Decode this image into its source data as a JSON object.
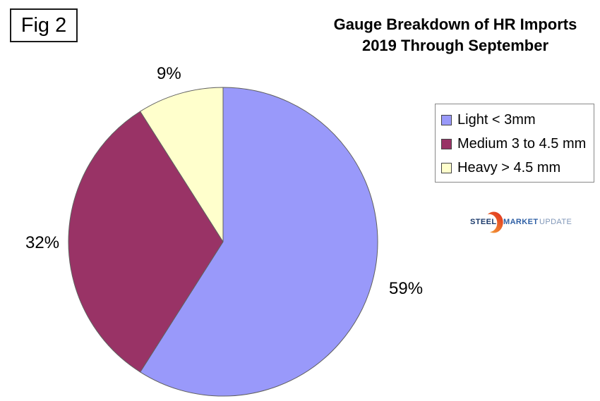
{
  "figure_label": "Fig 2",
  "title": {
    "line1": "Gauge Breakdown of HR Imports",
    "line2": "2019 Through September"
  },
  "chart_data": {
    "type": "pie",
    "title": "Gauge Breakdown of HR Imports 2019 Through September",
    "categories": [
      "Light < 3mm",
      "Medium 3 to 4.5 mm",
      "Heavy > 4.5 mm"
    ],
    "values": [
      59,
      32,
      9
    ],
    "unit": "percent",
    "data_labels": [
      "59%",
      "32%",
      "9%"
    ],
    "colors": [
      "#9999FA",
      "#993366",
      "#FFFFCC"
    ],
    "slice_border_color": "#606060",
    "start_angle": "12 o'clock, clockwise",
    "legend_position": "right"
  },
  "legend": {
    "items": [
      {
        "label": "Light < 3mm",
        "color": "#9999FA"
      },
      {
        "label": "Medium 3 to 4.5 mm",
        "color": "#993366"
      },
      {
        "label": "Heavy > 4.5 mm",
        "color": "#FFFFCC"
      }
    ]
  },
  "logo": {
    "part1": "STEEL",
    "part2": "MARKET",
    "part3": "UPDATE",
    "crescent_top_color": "#E1341E",
    "crescent_bottom_color": "#F6AC3C"
  }
}
